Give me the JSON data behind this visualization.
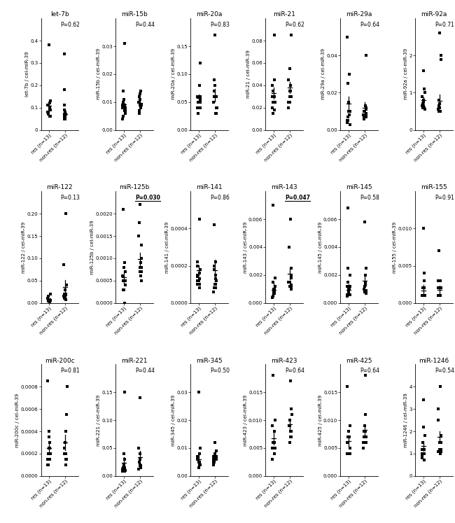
{
  "panels": [
    {
      "title": "let-7b",
      "ylabel": "let-7b / cel-miR-39",
      "pval": "P=0.62",
      "pval_bold": false,
      "ylim": [
        0,
        0.5
      ],
      "yticks": [
        0.0,
        0.1,
        0.2,
        0.3,
        0.4
      ],
      "ytick_labels": [
        "0",
        "0.1",
        "0.2",
        "0.3",
        "0.4"
      ],
      "res": [
        0.38,
        0.13,
        0.1,
        0.09,
        0.08,
        0.07,
        0.11,
        0.09,
        0.06,
        0.12,
        0.08,
        0.06,
        0.09
      ],
      "res_mean": 0.107,
      "res_sem": 0.025,
      "nonres": [
        0.34,
        0.18,
        0.09,
        0.07,
        0.06,
        0.08,
        0.05,
        0.07,
        0.11,
        0.06,
        0.05,
        0.08
      ],
      "nonres_mean": 0.072,
      "nonres_sem": 0.022
    },
    {
      "title": "miR-15b",
      "ylabel": "miR-15b / cel-miR-39",
      "pval": "P=0.44",
      "pval_bold": false,
      "ylim": [
        0,
        0.04
      ],
      "yticks": [
        0.0,
        0.01,
        0.02,
        0.03
      ],
      "ytick_labels": [
        "0.00",
        "0.01",
        "0.02",
        "0.03"
      ],
      "res": [
        0.031,
        0.014,
        0.011,
        0.009,
        0.008,
        0.007,
        0.01,
        0.009,
        0.008,
        0.006,
        0.007,
        0.005,
        0.004
      ],
      "res_mean": 0.0091,
      "res_sem": 0.0018,
      "nonres": [
        0.014,
        0.013,
        0.012,
        0.011,
        0.01,
        0.009,
        0.01,
        0.008,
        0.007,
        0.009,
        0.008,
        0.006
      ],
      "nonres_mean": 0.0097,
      "nonres_sem": 0.0006
    },
    {
      "title": "miR-20a",
      "ylabel": "miR-20a / cel-miR-39",
      "pval": "P=0.83",
      "pval_bold": false,
      "ylim": [
        0,
        0.2
      ],
      "yticks": [
        0.0,
        0.05,
        0.1,
        0.15
      ],
      "ytick_labels": [
        "0.00",
        "0.05",
        "0.10",
        "0.15"
      ],
      "res": [
        0.12,
        0.08,
        0.06,
        0.055,
        0.04,
        0.05,
        0.06,
        0.05,
        0.04,
        0.03,
        0.06,
        0.05,
        0.04
      ],
      "res_mean": 0.057,
      "res_sem": 0.007,
      "nonres": [
        0.17,
        0.09,
        0.08,
        0.07,
        0.06,
        0.05,
        0.04,
        0.03,
        0.06,
        0.05,
        0.04,
        0.03
      ],
      "nonres_mean": 0.062,
      "nonres_sem": 0.011
    },
    {
      "title": "miR-21",
      "ylabel": "miR-21 / cel-miR-39",
      "pval": "P=0.62",
      "pval_bold": false,
      "ylim": [
        0,
        0.1
      ],
      "yticks": [
        0.0,
        0.02,
        0.04,
        0.06,
        0.08
      ],
      "ytick_labels": [
        "0.00",
        "0.02",
        "0.04",
        "0.06",
        "0.08"
      ],
      "res": [
        0.085,
        0.045,
        0.04,
        0.035,
        0.03,
        0.025,
        0.03,
        0.025,
        0.02,
        0.015,
        0.03,
        0.025,
        0.018
      ],
      "res_mean": 0.033,
      "res_sem": 0.005,
      "nonres": [
        0.085,
        0.055,
        0.045,
        0.04,
        0.035,
        0.035,
        0.03,
        0.025,
        0.035,
        0.03,
        0.025,
        0.02
      ],
      "nonres_mean": 0.038,
      "nonres_sem": 0.005
    },
    {
      "title": "miR-29a",
      "ylabel": "miR-29a / cel-miR-39",
      "pval": "P=0.64",
      "pval_bold": false,
      "ylim": [
        0,
        0.06
      ],
      "yticks": [
        0.0,
        0.02,
        0.04
      ],
      "ytick_labels": [
        "0.00",
        "0.02",
        "0.04"
      ],
      "res": [
        0.05,
        0.03,
        0.025,
        0.015,
        0.01,
        0.005,
        0.01,
        0.008,
        0.005,
        0.004,
        0.007,
        0.005,
        0.003
      ],
      "res_mean": 0.014,
      "res_sem": 0.004,
      "nonres": [
        0.04,
        0.013,
        0.012,
        0.011,
        0.01,
        0.009,
        0.01,
        0.008,
        0.007,
        0.006,
        0.008,
        0.007
      ],
      "nonres_mean": 0.012,
      "nonres_sem": 0.003
    },
    {
      "title": "miR-92a",
      "ylabel": "miR-92a / cel-miR-39",
      "pval": "P=0.71",
      "pval_bold": false,
      "ylim": [
        0,
        3
      ],
      "yticks": [
        0,
        1,
        2
      ],
      "ytick_labels": [
        "0",
        "1",
        "2"
      ],
      "res": [
        1.6,
        1.1,
        1.0,
        0.9,
        0.8,
        0.75,
        0.7,
        0.65,
        0.6,
        0.55,
        0.7,
        0.65,
        0.6
      ],
      "res_mean": 0.8,
      "res_sem": 0.08,
      "nonres": [
        2.6,
        2.0,
        1.9,
        0.8,
        0.7,
        0.65,
        0.6,
        0.55,
        0.5,
        0.6,
        0.55,
        0.5
      ],
      "nonres_mean": 0.78,
      "nonres_sem": 0.17
    },
    {
      "title": "miR-122",
      "ylabel": "miR-122 / cel-miR-39",
      "pval": "P=0.13",
      "pval_bold": false,
      "ylim": [
        0,
        0.25
      ],
      "yticks": [
        0.0,
        0.05,
        0.1,
        0.15,
        0.2
      ],
      "ytick_labels": [
        "0.00",
        "0.05",
        "0.10",
        "0.15",
        "0.20"
      ],
      "res": [
        0.02,
        0.015,
        0.01,
        0.008,
        0.005,
        0.004,
        0.006,
        0.005,
        0.004,
        0.008,
        0.006,
        0.005,
        0.003
      ],
      "res_mean": 0.0073,
      "res_sem": 0.0013,
      "nonres": [
        0.2,
        0.085,
        0.04,
        0.03,
        0.02,
        0.015,
        0.02,
        0.018,
        0.015,
        0.012,
        0.01,
        0.008
      ],
      "nonres_mean": 0.036,
      "nonres_sem": 0.016
    },
    {
      "title": "miR-125b",
      "ylabel": "miR-125b / cel-miR-39",
      "pval": "P=0.030",
      "pval_bold": true,
      "ylim": [
        0,
        0.0025
      ],
      "yticks": [
        0.0,
        0.0005,
        0.001,
        0.0015,
        0.002
      ],
      "ytick_labels": [
        "0.0000",
        "0.0005",
        "0.0010",
        "0.0015",
        "0.0020"
      ],
      "res": [
        0.0021,
        0.0009,
        0.0008,
        0.0007,
        0.0006,
        0.0005,
        0.0006,
        0.0005,
        0.0004,
        0.0003,
        0.0,
        0.0004,
        0.0003
      ],
      "res_mean": 0.00058,
      "res_sem": 0.00014,
      "nonres": [
        0.0022,
        0.0018,
        0.0015,
        0.0013,
        0.001,
        0.0009,
        0.0008,
        0.0007,
        0.0006,
        0.0005,
        0.0008,
        0.0007
      ],
      "nonres_mean": 0.00098,
      "nonres_sem": 0.00014
    },
    {
      "title": "miR-141",
      "ylabel": "miR-141 / cel-miR-39",
      "pval": "P=0.86",
      "pval_bold": false,
      "ylim": [
        0,
        0.0006
      ],
      "yticks": [
        0.0,
        0.0002,
        0.0004
      ],
      "ytick_labels": [
        "0.0000",
        "0.0002",
        "0.0004"
      ],
      "res": [
        0.00045,
        0.00022,
        0.0002,
        0.00018,
        0.00016,
        0.00014,
        0.00015,
        0.00013,
        0.00012,
        0.0001,
        0.00012,
        0.0001,
        8e-05
      ],
      "res_mean": 0.000175,
      "res_sem": 2.8e-05,
      "nonres": [
        0.00042,
        0.00022,
        0.0002,
        0.00018,
        0.00015,
        0.00013,
        0.00012,
        0.0001,
        8e-05,
        6e-05,
        0.0001,
        8e-05
      ],
      "nonres_mean": 0.000175,
      "nonres_sem": 5.8e-05
    },
    {
      "title": "miR-143",
      "ylabel": "miR-143 / cel-miR-39",
      "pval": "P=0.047",
      "pval_bold": true,
      "ylim": [
        0,
        0.008
      ],
      "yticks": [
        0.0,
        0.002,
        0.004,
        0.006
      ],
      "ytick_labels": [
        "0.000",
        "0.002",
        "0.004",
        "0.006"
      ],
      "res": [
        0.007,
        0.0018,
        0.0015,
        0.0012,
        0.001,
        0.0008,
        0.001,
        0.0008,
        0.0007,
        0.0005,
        0.0007,
        0.0005,
        0.0004
      ],
      "res_mean": 0.00096,
      "res_sem": 0.00045,
      "nonres": [
        0.006,
        0.004,
        0.0025,
        0.002,
        0.0018,
        0.0015,
        0.0015,
        0.0013,
        0.0012,
        0.001,
        0.0012,
        0.001
      ],
      "nonres_mean": 0.0021,
      "nonres_sem": 0.0004
    },
    {
      "title": "miR-145",
      "ylabel": "miR-145 / cel-miR-39",
      "pval": "P=0.58",
      "pval_bold": false,
      "ylim": [
        0,
        0.008
      ],
      "yticks": [
        0.0,
        0.002,
        0.004,
        0.006
      ],
      "ytick_labels": [
        "0.000",
        "0.002",
        "0.004",
        "0.006"
      ],
      "res": [
        0.0068,
        0.0025,
        0.002,
        0.0015,
        0.0012,
        0.001,
        0.0012,
        0.001,
        0.0008,
        0.0006,
        0.0008,
        0.0006,
        0.0005
      ],
      "res_mean": 0.00095,
      "res_sem": 0.0004,
      "nonres": [
        0.0058,
        0.0025,
        0.002,
        0.0015,
        0.0013,
        0.0012,
        0.001,
        0.0009,
        0.0008,
        0.0007,
        0.0009,
        0.0008
      ],
      "nonres_mean": 0.0016,
      "nonres_sem": 0.0004
    },
    {
      "title": "miR-155",
      "ylabel": "miR-155 / cel-miR-39",
      "pval": "P=0.91",
      "pval_bold": false,
      "ylim": [
        0,
        0.015
      ],
      "yticks": [
        0.0,
        0.005,
        0.01
      ],
      "ytick_labels": [
        "0.000",
        "0.005",
        "0.010"
      ],
      "res": [
        0.01,
        0.004,
        0.003,
        0.003,
        0.002,
        0.001,
        0.002,
        0.001,
        0.001,
        0.001,
        0.001,
        0.001,
        0.001
      ],
      "res_mean": 0.0017,
      "res_sem": 0.00075,
      "nonres": [
        0.007,
        0.003,
        0.003,
        0.002,
        0.002,
        0.001,
        0.002,
        0.001,
        0.001,
        0.001,
        0.001,
        0.001
      ],
      "nonres_mean": 0.00175,
      "nonres_sem": 0.00055
    },
    {
      "title": "miR-200c",
      "ylabel": "miR-200c / cel-miR-39",
      "pval": "P=0.81",
      "pval_bold": false,
      "ylim": [
        0,
        0.001
      ],
      "yticks": [
        0.0,
        0.0002,
        0.0004,
        0.0006,
        0.0008
      ],
      "ytick_labels": [
        "0.0000",
        "0.0002",
        "0.0004",
        "0.0006",
        "0.0008"
      ],
      "res": [
        0.00085,
        0.0004,
        0.00035,
        0.0003,
        0.00025,
        0.0002,
        0.00025,
        0.0002,
        0.00015,
        0.0001,
        0.0002,
        0.00015,
        0.0001
      ],
      "res_mean": 0.00025,
      "res_sem": 6e-05,
      "nonres": [
        0.0008,
        0.00055,
        0.0004,
        0.0003,
        0.00025,
        0.0002,
        0.00025,
        0.0002,
        0.00015,
        0.0001,
        0.0002,
        0.00015
      ],
      "nonres_mean": 0.0003,
      "nonres_sem": 7e-05
    },
    {
      "title": "miR-221",
      "ylabel": "miR-221 / cel-miR-39",
      "pval": "P=0.44",
      "pval_bold": false,
      "ylim": [
        0,
        0.2
      ],
      "yticks": [
        0.0,
        0.05,
        0.1,
        0.15
      ],
      "ytick_labels": [
        "0.00",
        "0.05",
        "0.10",
        "0.15"
      ],
      "res": [
        0.15,
        0.04,
        0.03,
        0.02,
        0.015,
        0.012,
        0.015,
        0.012,
        0.01,
        0.008,
        0.012,
        0.01,
        0.008
      ],
      "res_mean": 0.023,
      "res_sem": 0.01,
      "nonres": [
        0.14,
        0.05,
        0.04,
        0.03,
        0.025,
        0.02,
        0.02,
        0.018,
        0.015,
        0.012,
        0.018,
        0.015
      ],
      "nonres_mean": 0.034,
      "nonres_sem": 0.011
    },
    {
      "title": "miR-345",
      "ylabel": "miR-345 / cel-miR-39",
      "pval": "P=0.50",
      "pval_bold": false,
      "ylim": [
        0,
        0.04
      ],
      "yticks": [
        0.0,
        0.01,
        0.02,
        0.03
      ],
      "ytick_labels": [
        "0.00",
        "0.01",
        "0.02",
        "0.03"
      ],
      "res": [
        0.03,
        0.01,
        0.008,
        0.007,
        0.006,
        0.005,
        0.007,
        0.005,
        0.004,
        0.003,
        0.005,
        0.004,
        0.003
      ],
      "res_mean": 0.006,
      "res_sem": 0.0021,
      "nonres": [
        0.012,
        0.009,
        0.008,
        0.007,
        0.006,
        0.005,
        0.007,
        0.006,
        0.005,
        0.004,
        0.006,
        0.005
      ],
      "nonres_mean": 0.0067,
      "nonres_sem": 0.0007
    },
    {
      "title": "miR-423",
      "ylabel": "miR-423 / cel-miR-39",
      "pval": "P=0.64",
      "pval_bold": false,
      "ylim": [
        0,
        0.02
      ],
      "yticks": [
        0.0,
        0.005,
        0.01,
        0.015
      ],
      "ytick_labels": [
        "0.000",
        "0.005",
        "0.010",
        "0.015"
      ],
      "res": [
        0.018,
        0.01,
        0.009,
        0.008,
        0.006,
        0.005,
        0.008,
        0.006,
        0.005,
        0.004,
        0.006,
        0.005,
        0.003
      ],
      "res_mean": 0.0068,
      "res_sem": 0.0012,
      "nonres": [
        0.017,
        0.012,
        0.011,
        0.01,
        0.009,
        0.008,
        0.009,
        0.008,
        0.007,
        0.006,
        0.008,
        0.007
      ],
      "nonres_mean": 0.0093,
      "nonres_sem": 0.0009
    },
    {
      "title": "miR-425",
      "ylabel": "miR-425 / cel-miR-39",
      "pval": "P=0.64",
      "pval_bold": false,
      "ylim": [
        0,
        0.02
      ],
      "yticks": [
        0.0,
        0.005,
        0.01,
        0.015
      ],
      "ytick_labels": [
        "0.000",
        "0.005",
        "0.010",
        "0.015"
      ],
      "res": [
        0.016,
        0.009,
        0.008,
        0.007,
        0.006,
        0.005,
        0.007,
        0.006,
        0.005,
        0.004,
        0.006,
        0.005,
        0.004
      ],
      "res_mean": 0.0063,
      "res_sem": 0.001,
      "nonres": [
        0.018,
        0.011,
        0.009,
        0.008,
        0.007,
        0.006,
        0.008,
        0.007,
        0.006,
        0.005,
        0.007,
        0.006
      ],
      "nonres_mean": 0.0082,
      "nonres_sem": 0.001
    },
    {
      "title": "miR-1246",
      "ylabel": "miR-1246 / cel-miR-39",
      "pval": "P=0.54",
      "pval_bold": false,
      "ylim": [
        0,
        5
      ],
      "yticks": [
        0,
        1,
        2,
        3,
        4
      ],
      "ytick_labels": [
        "0",
        "1",
        "2",
        "3",
        "4"
      ],
      "res": [
        3.4,
        2.2,
        1.8,
        1.5,
        1.2,
        1.0,
        1.2,
        1.0,
        0.9,
        0.8,
        1.0,
        0.9,
        0.7
      ],
      "res_mean": 1.35,
      "res_sem": 0.22,
      "nonres": [
        4.0,
        3.0,
        2.5,
        1.8,
        1.5,
        1.2,
        1.5,
        1.2,
        1.1,
        1.0,
        1.2,
        1.1
      ],
      "nonres_mean": 1.76,
      "nonres_sem": 0.25
    }
  ],
  "nrows": 3,
  "ncols": 6,
  "xlabel_res": "res (n=13)",
  "xlabel_nonres": "non-res (n=12)",
  "marker": "s",
  "marker_size": 3.5,
  "color": "black",
  "tick_fontsize": 5.0,
  "label_fontsize": 5.0,
  "title_fontsize": 6.5,
  "pval_fontsize": 5.5
}
